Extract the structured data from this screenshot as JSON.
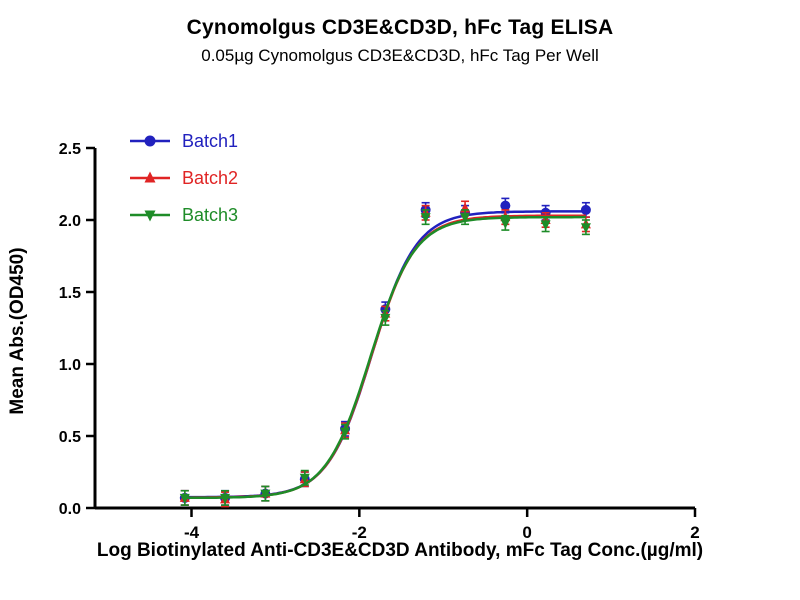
{
  "header": {
    "title": "Cynomolgus CD3E&CD3D, hFc Tag ELISA",
    "subtitle": "0.05µg Cynomolgus CD3E&CD3D, hFc Tag Per Well"
  },
  "chart_data": {
    "type": "scatter",
    "title": "Cynomolgus CD3E&CD3D, hFc Tag ELISA",
    "subtitle": "0.05µg Cynomolgus CD3E&CD3D, hFc Tag Per Well",
    "xlabel": "Log Biotinylated Anti-CD3E&CD3D Antibody, mFc Tag Conc.(µg/ml)",
    "ylabel": "Mean Abs.(OD450)",
    "grid": false,
    "legend_position": "top-left",
    "x_axis": {
      "min": -5.15,
      "max": 2,
      "ticks": [
        {
          "v": -4,
          "label": "-4"
        },
        {
          "v": -2,
          "label": "-2"
        },
        {
          "v": 0,
          "label": "0"
        },
        {
          "v": 2,
          "label": "2"
        }
      ]
    },
    "y_axis": {
      "min": 0,
      "max": 2.5,
      "ticks": [
        {
          "v": 0.0,
          "label": "0.0"
        },
        {
          "v": 0.5,
          "label": "0.5"
        },
        {
          "v": 1.0,
          "label": "1.0"
        },
        {
          "v": 1.5,
          "label": "1.5"
        },
        {
          "v": 2.0,
          "label": "2.0"
        },
        {
          "v": 2.5,
          "label": "2.5"
        }
      ]
    },
    "x": [
      -4.08,
      -3.6,
      -3.12,
      -2.65,
      -2.17,
      -1.69,
      -1.21,
      -0.74,
      -0.26,
      0.22,
      0.7
    ],
    "series": [
      {
        "name": "Batch1",
        "color": "#2121BE",
        "marker": "circle",
        "error": 0.05,
        "values": [
          0.07,
          0.07,
          0.1,
          0.2,
          0.55,
          1.38,
          2.07,
          2.05,
          2.1,
          2.05,
          2.07
        ],
        "fit": {
          "bottom": 0.075,
          "top": 2.06,
          "logec50": -1.85,
          "hill": 1.65
        }
      },
      {
        "name": "Batch2",
        "color": "#E02424",
        "marker": "triangle-up",
        "error": 0.05,
        "values": [
          0.07,
          0.06,
          0.1,
          0.2,
          0.54,
          1.35,
          2.05,
          2.08,
          2.02,
          2.0,
          1.97
        ],
        "fit": {
          "bottom": 0.072,
          "top": 2.03,
          "logec50": -1.86,
          "hill": 1.65
        }
      },
      {
        "name": "Batch3",
        "color": "#1E8C28",
        "marker": "triangle-down",
        "error": 0.05,
        "values": [
          0.07,
          0.07,
          0.1,
          0.21,
          0.53,
          1.32,
          2.02,
          2.02,
          1.98,
          1.97,
          1.95
        ],
        "fit": {
          "bottom": 0.07,
          "top": 2.02,
          "logec50": -1.87,
          "hill": 1.65
        }
      }
    ]
  }
}
